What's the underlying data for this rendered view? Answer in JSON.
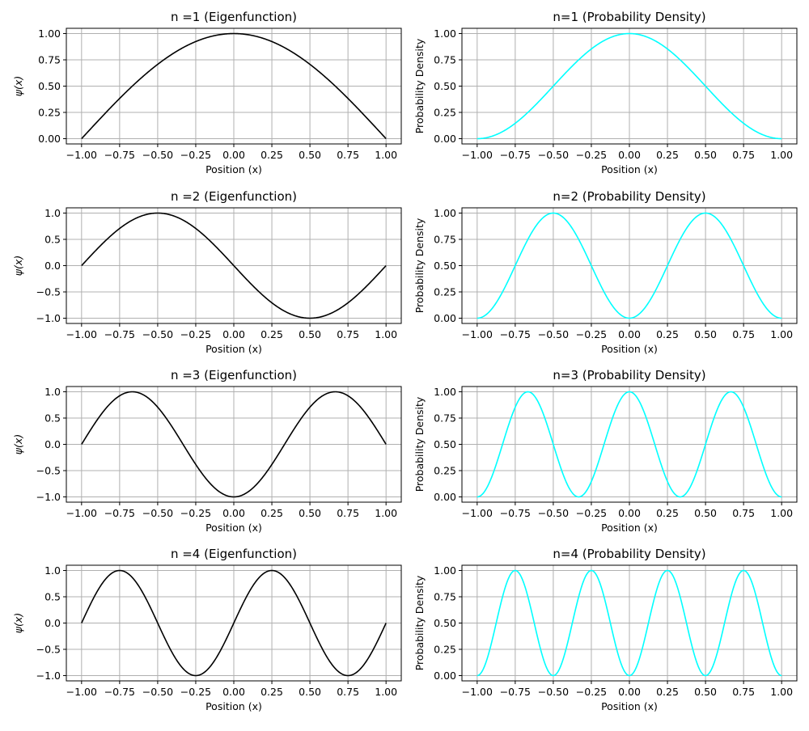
{
  "chart_data": [
    {
      "type": "line",
      "title": "n =1 (Eigenfunction)",
      "xlabel": "Position (x)",
      "ylabel": "ψ(x)",
      "func": "psi",
      "n": 1,
      "color": "#000000",
      "xlim": [
        -1.1,
        1.1
      ],
      "ylim": [
        -0.05,
        1.05
      ],
      "xticks": [
        -1.0,
        -0.75,
        -0.5,
        -0.25,
        0.0,
        0.25,
        0.5,
        0.75,
        1.0
      ],
      "xtick_labels": [
        "−1.00",
        "−0.75",
        "−0.50",
        "−0.25",
        "0.00",
        "0.25",
        "0.50",
        "0.75",
        "1.00"
      ],
      "yticks": [
        0.0,
        0.25,
        0.5,
        0.75,
        1.0
      ],
      "ytick_labels": [
        "0.00",
        "0.25",
        "0.50",
        "0.75",
        "1.00"
      ],
      "grid": true
    },
    {
      "type": "line",
      "title": "n=1 (Probability Density)",
      "xlabel": "Position (x)",
      "ylabel": "Probability Density",
      "func": "prob",
      "n": 1,
      "color": "#00ffff",
      "xlim": [
        -1.1,
        1.1
      ],
      "ylim": [
        -0.05,
        1.05
      ],
      "xticks": [
        -1.0,
        -0.75,
        -0.5,
        -0.25,
        0.0,
        0.25,
        0.5,
        0.75,
        1.0
      ],
      "xtick_labels": [
        "−1.00",
        "−0.75",
        "−0.50",
        "−0.25",
        "0.00",
        "0.25",
        "0.50",
        "0.75",
        "1.00"
      ],
      "yticks": [
        0.0,
        0.25,
        0.5,
        0.75,
        1.0
      ],
      "ytick_labels": [
        "0.00",
        "0.25",
        "0.50",
        "0.75",
        "1.00"
      ],
      "grid": true
    },
    {
      "type": "line",
      "title": "n =2 (Eigenfunction)",
      "xlabel": "Position (x)",
      "ylabel": "ψ(x)",
      "func": "psi",
      "n": 2,
      "color": "#000000",
      "xlim": [
        -1.1,
        1.1
      ],
      "ylim": [
        -1.1,
        1.1
      ],
      "xticks": [
        -1.0,
        -0.75,
        -0.5,
        -0.25,
        0.0,
        0.25,
        0.5,
        0.75,
        1.0
      ],
      "xtick_labels": [
        "−1.00",
        "−0.75",
        "−0.50",
        "−0.25",
        "0.00",
        "0.25",
        "0.50",
        "0.75",
        "1.00"
      ],
      "yticks": [
        -1.0,
        -0.5,
        0.0,
        0.5,
        1.0
      ],
      "ytick_labels": [
        "−1.0",
        "−0.5",
        "0.0",
        "0.5",
        "1.0"
      ],
      "grid": true
    },
    {
      "type": "line",
      "title": "n=2 (Probability Density)",
      "xlabel": "Position (x)",
      "ylabel": "Probability Density",
      "func": "prob",
      "n": 2,
      "color": "#00ffff",
      "xlim": [
        -1.1,
        1.1
      ],
      "ylim": [
        -0.05,
        1.05
      ],
      "xticks": [
        -1.0,
        -0.75,
        -0.5,
        -0.25,
        0.0,
        0.25,
        0.5,
        0.75,
        1.0
      ],
      "xtick_labels": [
        "−1.00",
        "−0.75",
        "−0.50",
        "−0.25",
        "0.00",
        "0.25",
        "0.50",
        "0.75",
        "1.00"
      ],
      "yticks": [
        0.0,
        0.25,
        0.5,
        0.75,
        1.0
      ],
      "ytick_labels": [
        "0.00",
        "0.25",
        "0.50",
        "0.75",
        "1.00"
      ],
      "grid": true
    },
    {
      "type": "line",
      "title": "n =3 (Eigenfunction)",
      "xlabel": "Position (x)",
      "ylabel": "ψ(x)",
      "func": "psi",
      "n": 3,
      "color": "#000000",
      "xlim": [
        -1.1,
        1.1
      ],
      "ylim": [
        -1.1,
        1.1
      ],
      "xticks": [
        -1.0,
        -0.75,
        -0.5,
        -0.25,
        0.0,
        0.25,
        0.5,
        0.75,
        1.0
      ],
      "xtick_labels": [
        "−1.00",
        "−0.75",
        "−0.50",
        "−0.25",
        "0.00",
        "0.25",
        "0.50",
        "0.75",
        "1.00"
      ],
      "yticks": [
        -1.0,
        -0.5,
        0.0,
        0.5,
        1.0
      ],
      "ytick_labels": [
        "−1.0",
        "−0.5",
        "0.0",
        "0.5",
        "1.0"
      ],
      "grid": true
    },
    {
      "type": "line",
      "title": "n=3 (Probability Density)",
      "xlabel": "Position (x)",
      "ylabel": "Probability Density",
      "func": "prob",
      "n": 3,
      "color": "#00ffff",
      "xlim": [
        -1.1,
        1.1
      ],
      "ylim": [
        -0.05,
        1.05
      ],
      "xticks": [
        -1.0,
        -0.75,
        -0.5,
        -0.25,
        0.0,
        0.25,
        0.5,
        0.75,
        1.0
      ],
      "xtick_labels": [
        "−1.00",
        "−0.75",
        "−0.50",
        "−0.25",
        "0.00",
        "0.25",
        "0.50",
        "0.75",
        "1.00"
      ],
      "yticks": [
        0.0,
        0.25,
        0.5,
        0.75,
        1.0
      ],
      "ytick_labels": [
        "0.00",
        "0.25",
        "0.50",
        "0.75",
        "1.00"
      ],
      "grid": true
    },
    {
      "type": "line",
      "title": "n =4 (Eigenfunction)",
      "xlabel": "Position (x)",
      "ylabel": "ψ(x)",
      "func": "psi",
      "n": 4,
      "color": "#000000",
      "xlim": [
        -1.1,
        1.1
      ],
      "ylim": [
        -1.1,
        1.1
      ],
      "xticks": [
        -1.0,
        -0.75,
        -0.5,
        -0.25,
        0.0,
        0.25,
        0.5,
        0.75,
        1.0
      ],
      "xtick_labels": [
        "−1.00",
        "−0.75",
        "−0.50",
        "−0.25",
        "0.00",
        "0.25",
        "0.50",
        "0.75",
        "1.00"
      ],
      "yticks": [
        -1.0,
        -0.5,
        0.0,
        0.5,
        1.0
      ],
      "ytick_labels": [
        "−1.0",
        "−0.5",
        "0.0",
        "0.5",
        "1.0"
      ],
      "grid": true
    },
    {
      "type": "line",
      "title": "n=4 (Probability Density)",
      "xlabel": "Position (x)",
      "ylabel": "Probability Density",
      "func": "prob",
      "n": 4,
      "color": "#00ffff",
      "xlim": [
        -1.1,
        1.1
      ],
      "ylim": [
        -0.05,
        1.05
      ],
      "xticks": [
        -1.0,
        -0.75,
        -0.5,
        -0.25,
        0.0,
        0.25,
        0.5,
        0.75,
        1.0
      ],
      "xtick_labels": [
        "−1.00",
        "−0.75",
        "−0.50",
        "−0.25",
        "0.00",
        "0.25",
        "0.50",
        "0.75",
        "1.00"
      ],
      "yticks": [
        0.0,
        0.25,
        0.5,
        0.75,
        1.0
      ],
      "ytick_labels": [
        "0.00",
        "0.25",
        "0.50",
        "0.75",
        "1.00"
      ],
      "grid": true
    }
  ]
}
